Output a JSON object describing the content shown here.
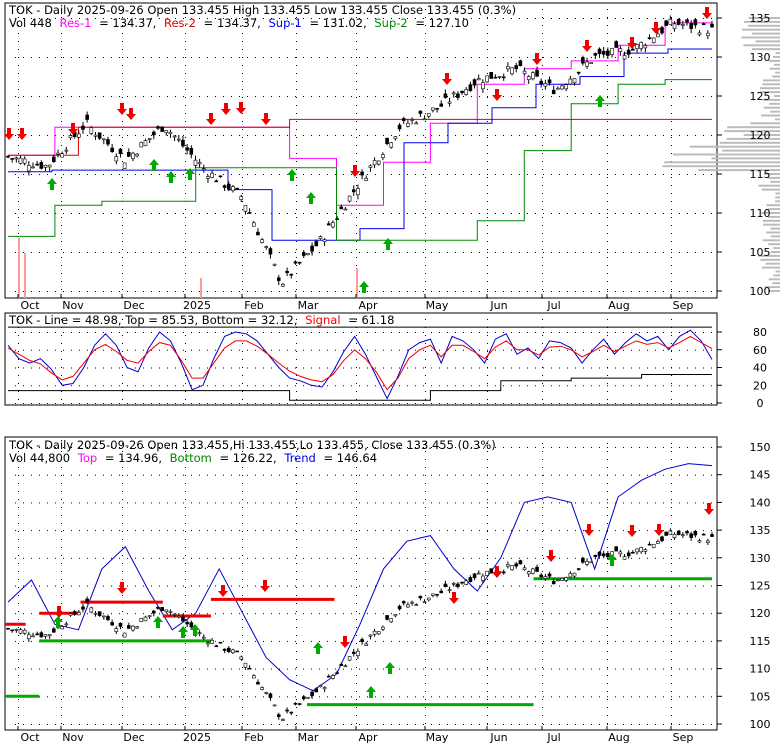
{
  "chart_data": [
    {
      "type": "candlestick",
      "panel": "price",
      "header": {
        "p1": "TOK - Daily 2025-09-26 Open 133.455  High 133.455  Low 133.455  Close 133.455 (0.3%)",
        "vol": "Vol 448",
        "res1": "Res-1",
        "res1_val": "= 134.37,",
        "res2": "Res-2",
        "res2_val": "= 134.37,",
        "sup1": "Sup-1",
        "sup1_val": "= 131.02,",
        "sup2": "Sup-2",
        "sup2_val": "= 127.10"
      },
      "x_labels": [
        "Oct",
        "Nov",
        "Dec",
        "2025",
        "Feb",
        "Mar",
        "Apr",
        "May",
        "Jun",
        "Jul",
        "Aug",
        "Sep"
      ],
      "y_ticks": [
        100,
        105,
        110,
        115,
        120,
        125,
        130,
        135
      ],
      "ylim": [
        99,
        136.5
      ],
      "key_prices": [
        117.2,
        116,
        121.5,
        116.8,
        121.3,
        115.7,
        112,
        101,
        106.5,
        114,
        121,
        123.5,
        127,
        128.5,
        125.8,
        130,
        131,
        134.4,
        133.455
      ],
      "series": [
        {
          "name": "Res-1",
          "color": "#ff00ff",
          "values": [
            117.4,
            121,
            121,
            121,
            121,
            121,
            117,
            111,
            116.5,
            121.5,
            126.5,
            128.5,
            129.5,
            131.5,
            134.37
          ]
        },
        {
          "name": "Res-2",
          "color": "#dd0000",
          "values": [
            117.4,
            121,
            121,
            121,
            122,
            122,
            122,
            122,
            122,
            122
          ]
        },
        {
          "name": "Sup-1",
          "color": "#0000ee",
          "values": [
            115.3,
            115.5,
            115.5,
            115.5,
            115.5,
            113,
            106.5,
            106.5,
            108,
            119,
            121.5,
            123.5,
            126.5,
            127.5,
            130.5,
            131.02
          ]
        },
        {
          "name": "Sup-2",
          "color": "#008800",
          "values": [
            107,
            111,
            111.5,
            111.5,
            115.8,
            115.8,
            115.8,
            106.5,
            106.5,
            106.5,
            109,
            118,
            124,
            126.5,
            127.1
          ]
        }
      ]
    },
    {
      "type": "line",
      "panel": "oscillator",
      "header": {
        "p1": "TOK - Line = 48.98, Top = 85.53, Bottom = 32.12,",
        "signal": "Signal",
        "signal_val": "= 61.18"
      },
      "y_ticks": [
        0,
        20,
        40,
        60,
        80
      ],
      "ylim": [
        -2,
        93
      ],
      "values": [
        65,
        50,
        45,
        50,
        38,
        20,
        22,
        40,
        65,
        78,
        65,
        40,
        35,
        62,
        80,
        70,
        45,
        15,
        20,
        50,
        75,
        80,
        78,
        70,
        55,
        40,
        28,
        25,
        20,
        18,
        35,
        58,
        75,
        55,
        30,
        5,
        30,
        60,
        68,
        72,
        45,
        75,
        70,
        60,
        45,
        72,
        78,
        55,
        62,
        50,
        70,
        68,
        62,
        45,
        60,
        72,
        55,
        68,
        78,
        70,
        75,
        60,
        75,
        82,
        70,
        48.98
      ],
      "signal": [
        62,
        55,
        48,
        44,
        34,
        26,
        30,
        45,
        60,
        66,
        58,
        48,
        45,
        58,
        68,
        65,
        48,
        28,
        28,
        45,
        62,
        70,
        70,
        64,
        55,
        45,
        36,
        30,
        26,
        24,
        32,
        48,
        60,
        50,
        35,
        15,
        28,
        50,
        60,
        65,
        52,
        65,
        65,
        58,
        50,
        63,
        70,
        60,
        60,
        54,
        63,
        64,
        60,
        52,
        58,
        65,
        58,
        64,
        70,
        66,
        68,
        62,
        68,
        75,
        68,
        61.18
      ],
      "top": [
        85.53,
        85.53,
        85.53,
        85.53,
        85.53,
        85.53
      ],
      "bottom": [
        14,
        14,
        14,
        14,
        3,
        3,
        14,
        25,
        28,
        32.12
      ]
    },
    {
      "type": "candlestick",
      "panel": "trend",
      "header": {
        "p1": "TOK - Daily 2025-09-26 Open 133.455,Hi 133.455,Lo 133.455, Close 133.455 (0.3%)",
        "vol": "Vol 44,800",
        "top": "Top",
        "top_val": "= 134.96,",
        "bottom": "Bottom",
        "bottom_val": "= 126.22,",
        "trend": "Trend",
        "trend_val": "= 146.64"
      },
      "x_labels": [
        "Oct",
        "Nov",
        "Dec",
        "2025",
        "Feb",
        "Mar",
        "Apr",
        "May",
        "Jun",
        "Jul",
        "Aug",
        "Sep"
      ],
      "y_ticks": [
        100,
        105,
        110,
        115,
        120,
        125,
        130,
        135,
        140,
        145,
        150
      ],
      "ylim": [
        99,
        151
      ],
      "trend_line": [
        122,
        126,
        118,
        117,
        128,
        132,
        124,
        117,
        120,
        128,
        120,
        112,
        108,
        106,
        109,
        118,
        128,
        133,
        134,
        128,
        124,
        130,
        140,
        141,
        140,
        128,
        141,
        144,
        146,
        147,
        146.64
      ],
      "resistance_levels": [
        {
          "from": 0,
          "to": 3,
          "value": 118
        },
        {
          "from": 5,
          "to": 11,
          "value": 120
        },
        {
          "from": 11,
          "to": 23,
          "value": 122
        },
        {
          "from": 23,
          "to": 30,
          "value": 119.5
        },
        {
          "from": 30,
          "to": 48,
          "value": 122.5
        }
      ],
      "support_levels": [
        {
          "from": 0,
          "to": 5,
          "value": 105
        },
        {
          "from": 5,
          "to": 30,
          "value": 115
        },
        {
          "from": 44,
          "to": 77,
          "value": 103.5
        },
        {
          "from": 77,
          "to": 103,
          "value": 126.22
        }
      ]
    }
  ]
}
